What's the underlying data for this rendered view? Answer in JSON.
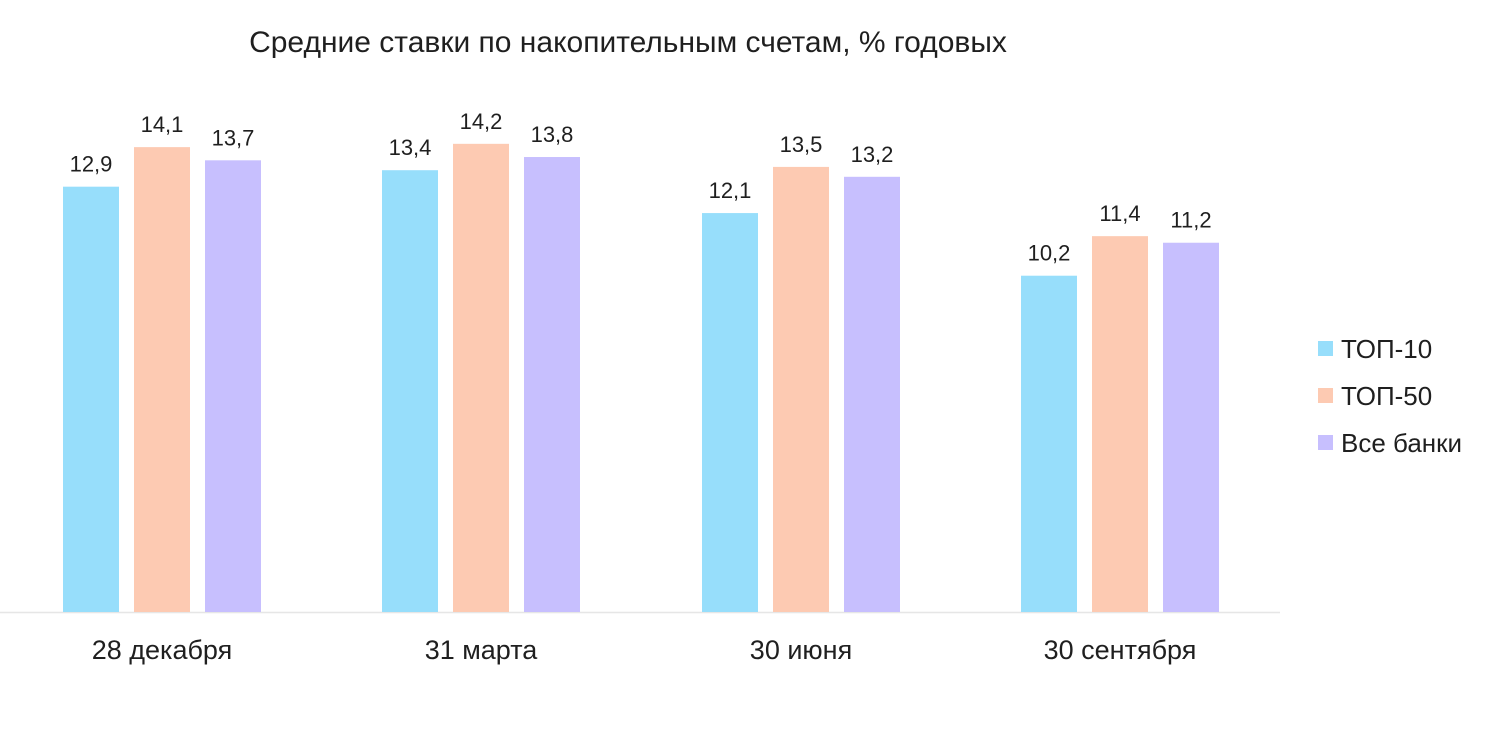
{
  "chart_data": {
    "type": "bar",
    "title": "Средние ставки по накопительным счетам, % годовых",
    "categories": [
      "28 декабря",
      "31 марта",
      "30 июня",
      "30 сентября"
    ],
    "series": [
      {
        "name": "ТОП-10",
        "color": "#97defb",
        "values": [
          12.9,
          13.4,
          12.1,
          10.2
        ],
        "labels": [
          "12,9",
          "13,4",
          "12,1",
          "10,2"
        ]
      },
      {
        "name": "ТОП-50",
        "color": "#fdcab2",
        "values": [
          14.1,
          14.2,
          13.5,
          11.4
        ],
        "labels": [
          "14,1",
          "14,2",
          "13,5",
          "11,4"
        ]
      },
      {
        "name": "Все банки",
        "color": "#c7bffe",
        "values": [
          13.7,
          13.8,
          13.2,
          11.2
        ],
        "labels": [
          "13,7",
          "13,8",
          "13,2",
          "11,2"
        ]
      }
    ],
    "ylim": [
      0,
      16.5
    ],
    "grid": false,
    "legend_position": "right"
  }
}
